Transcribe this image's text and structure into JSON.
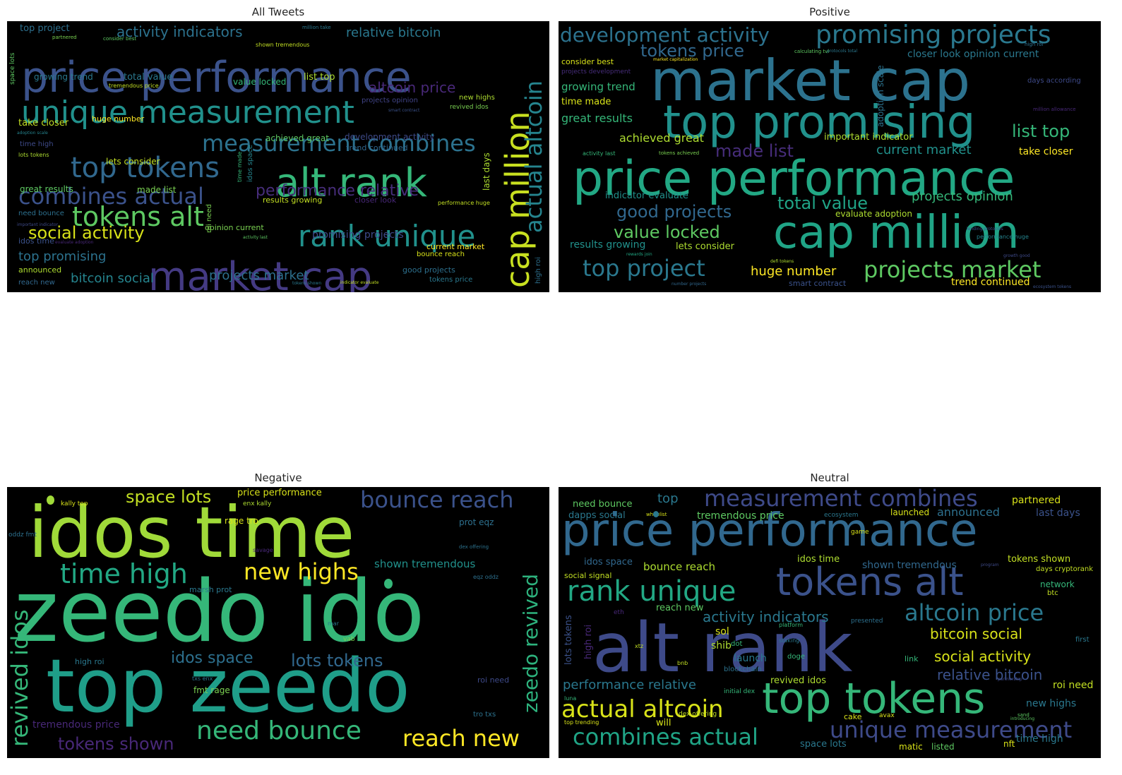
{
  "panels": {
    "all": {
      "title": "All Tweets",
      "words": [
        "price performance",
        "market cap",
        "alt rank",
        "unique measurement",
        "rank unique",
        "top tokens",
        "tokens alt",
        "measurement combines",
        "combines actual",
        "cap million",
        "actual altcoin",
        "social activity",
        "activity indicators",
        "relative bitcoin",
        "altcoin price",
        "performance relative",
        "bitcoin social",
        "projects market",
        "top promising",
        "top project",
        "promising projects",
        "growing trend",
        "total value",
        "list top",
        "value locked",
        "take closer",
        "huge number",
        "lets consider",
        "great results",
        "made list",
        "achieved great",
        "development activity",
        "trend continued",
        "projects opinion",
        "new highs",
        "revived idos",
        "last days",
        "current market",
        "good projects",
        "tokens price",
        "bounce reach",
        "announced",
        "reach new",
        "results growing",
        "closer look",
        "opinion current",
        "idos time",
        "time high",
        "need bounce",
        "tremendous price",
        "lots tokens",
        "consider best",
        "partnered",
        "high roi",
        "performance huge",
        "roi need",
        "space lots",
        "idos space",
        "time made",
        "shown tremendous",
        "million take",
        "smart contract",
        "adoption scale",
        "indicator evaluate",
        "important indicator",
        "activity last",
        "evaluate adoption",
        "tokens shown"
      ]
    },
    "positive": {
      "title": "Positive",
      "words": [
        "market cap",
        "top promising",
        "price performance",
        "cap million",
        "promising projects",
        "development activity",
        "tokens price",
        "top project",
        "projects market",
        "made list",
        "list top",
        "good projects",
        "value locked",
        "total value",
        "current market",
        "closer look opinion current",
        "achieved great",
        "great results",
        "growing trend",
        "time made",
        "consider best",
        "projects development",
        "take closer",
        "huge number",
        "trend continued",
        "results growing",
        "lets consider",
        "indicator evaluate",
        "evaluate adoption",
        "important indicator",
        "projects opinion",
        "smart contract",
        "adoption scale",
        "days according",
        "market capitalization",
        "million allowance",
        "calculating tvl",
        "protocols total",
        "performance huge",
        "activity last",
        "tokens achieved",
        "growth good",
        "lending protocols",
        "rewards join",
        "number projects",
        "ecosystem tokens",
        "defi tokens",
        "high roi"
      ]
    },
    "negative": {
      "title": "Negative",
      "words": [
        "zeedo ido",
        "idos time",
        "top zeedo",
        "time high",
        "new highs",
        "revived idos",
        "need bounce",
        "reach new",
        "bounce reach",
        "zeedo revived",
        "space lots",
        "tokens shown",
        "lots tokens",
        "idos space",
        "shown tremendous",
        "price performance",
        "tremendous price",
        "rage tro",
        "prot eqz",
        "marsh prot",
        "high roi",
        "fmt rage",
        "roi need",
        "kally top",
        "enx kally",
        "oddz fmt",
        "txs enx",
        "tro txs",
        "eqz oddz",
        "dex offering",
        "savage",
        "mar",
        "vab"
      ]
    },
    "neutral": {
      "title": "Neutral",
      "words": [
        "alt rank",
        "price performance",
        "tokens alt",
        "top tokens",
        "rank unique",
        "measurement combines",
        "unique measurement",
        "combines actual",
        "actual altcoin",
        "altcoin price",
        "bitcoin social",
        "social activity",
        "activity indicators",
        "relative bitcoin",
        "performance relative",
        "need bounce",
        "tremendous price",
        "launched",
        "announced",
        "partnered",
        "last days",
        "dapps social",
        "whitelist",
        "ecosystem",
        "idos space",
        "idos time",
        "bounce reach",
        "shown tremendous",
        "tokens shown",
        "days cryptorank",
        "social signal",
        "reach new",
        "network",
        "btc",
        "sol",
        "shib",
        "launch",
        "blockchain",
        "revived idos",
        "roi need",
        "new highs",
        "time high",
        "nft",
        "matic",
        "listed",
        "space lots",
        "cake",
        "avax",
        "link",
        "doge",
        "dot",
        "xtz",
        "bnb",
        "luna",
        "initial dex",
        "dex offering",
        "top trending",
        "will",
        "eth",
        "high roi",
        "lots tokens",
        "top",
        "first",
        "sand",
        "presented",
        "platform",
        "staking",
        "program",
        "introducing",
        "partnership",
        "game"
      ]
    }
  }
}
